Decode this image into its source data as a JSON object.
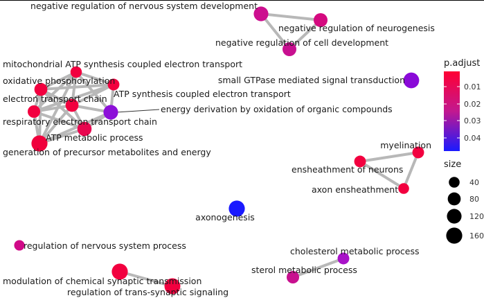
{
  "legend": {
    "color_title": "p.adjust",
    "color_ticks": [
      "0.01",
      "0.02",
      "0.03",
      "0.04"
    ],
    "color_high": "#ff0033",
    "color_low": "#1a1aff",
    "size_title": "size",
    "size_ticks": [
      "40",
      "80",
      "120",
      "160"
    ]
  },
  "nodes": [
    {
      "id": "neg-nervous-dev",
      "label": "negative regulation of nervous system development",
      "color": "#cc0f8f",
      "size": 120
    },
    {
      "id": "neg-neurogenesis",
      "label": "negative regulation of neurogenesis",
      "color": "#d40a7f",
      "size": 100
    },
    {
      "id": "neg-cell-dev",
      "label": "negative regulation of cell development",
      "color": "#c81090",
      "size": 100
    },
    {
      "id": "mito-atp",
      "label": "mitochondrial ATP synthesis coupled electron transport",
      "color": "#f2003f",
      "size": 50
    },
    {
      "id": "oxphos",
      "label": "oxidative phosphorylation",
      "color": "#f2003f",
      "size": 80
    },
    {
      "id": "atp-synthesis",
      "label": "ATP synthesis coupled electron transport",
      "color": "#f2003f",
      "size": 55
    },
    {
      "id": "etc",
      "label": "electron transport chain",
      "color": "#f2003f",
      "size": 80
    },
    {
      "id": "resp-etc",
      "label": "respiratory electron transport chain",
      "color": "#f2003f",
      "size": 70
    },
    {
      "id": "energy-deriv",
      "label": "energy derivation by oxidation of organic compounds",
      "color": "#8c10d8",
      "size": 120
    },
    {
      "id": "atp-metabolic",
      "label": "ATP metabolic process",
      "color": "#e8074f",
      "size": 110
    },
    {
      "id": "gen-precursor",
      "label": "generation of precursor metabolites and energy",
      "color": "#f0003c",
      "size": 160
    },
    {
      "id": "small-gtpase",
      "label": "small GTPase mediated signal transduction",
      "color": "#8a0ad8",
      "size": 150
    },
    {
      "id": "myelination",
      "label": "myelination",
      "color": "#f2003f",
      "size": 55
    },
    {
      "id": "ensheathment-neurons",
      "label": "ensheathment of neurons",
      "color": "#f2003f",
      "size": 55
    },
    {
      "id": "axon-ensheathment",
      "label": "axon ensheathment",
      "color": "#f2003f",
      "size": 40
    },
    {
      "id": "axonogenesis",
      "label": "axonogenesis",
      "color": "#1a1aff",
      "size": 160
    },
    {
      "id": "reg-nervous-process",
      "label": "regulation of nervous system process",
      "color": "#d00a88",
      "size": 35
    },
    {
      "id": "cholesterol-metabolic",
      "label": "cholesterol metabolic process",
      "color": "#a812c8",
      "size": 55
    },
    {
      "id": "sterol-metabolic",
      "label": "sterol metabolic process",
      "color": "#c8108f",
      "size": 70
    },
    {
      "id": "mod-chem-syn",
      "label": "modulation of chemical synaptic transmission",
      "color": "#f2003f",
      "size": 160
    },
    {
      "id": "reg-trans-syn",
      "label": "regulation of trans-synaptic signaling",
      "color": "#f2003f",
      "size": 155
    }
  ],
  "edges": [
    [
      "neg-nervous-dev",
      "neg-neurogenesis"
    ],
    [
      "neg-nervous-dev",
      "neg-cell-dev"
    ],
    [
      "neg-neurogenesis",
      "neg-cell-dev"
    ],
    [
      "mito-atp",
      "oxphos"
    ],
    [
      "mito-atp",
      "atp-synthesis"
    ],
    [
      "mito-atp",
      "etc"
    ],
    [
      "mito-atp",
      "resp-etc"
    ],
    [
      "mito-atp",
      "energy-deriv"
    ],
    [
      "mito-atp",
      "gen-precursor"
    ],
    [
      "oxphos",
      "atp-synthesis"
    ],
    [
      "oxphos",
      "etc"
    ],
    [
      "oxphos",
      "resp-etc"
    ],
    [
      "oxphos",
      "atp-metabolic"
    ],
    [
      "oxphos",
      "gen-precursor"
    ],
    [
      "atp-synthesis",
      "etc"
    ],
    [
      "atp-synthesis",
      "resp-etc"
    ],
    [
      "atp-synthesis",
      "energy-deriv"
    ],
    [
      "etc",
      "resp-etc"
    ],
    [
      "etc",
      "energy-deriv"
    ],
    [
      "etc",
      "gen-precursor"
    ],
    [
      "etc",
      "atp-metabolic"
    ],
    [
      "resp-etc",
      "gen-precursor"
    ],
    [
      "resp-etc",
      "atp-metabolic"
    ],
    [
      "energy-deriv",
      "gen-precursor"
    ],
    [
      "energy-deriv",
      "atp-metabolic"
    ],
    [
      "atp-metabolic",
      "gen-precursor"
    ],
    [
      "myelination",
      "ensheathment-neurons"
    ],
    [
      "myelination",
      "axon-ensheathment"
    ],
    [
      "ensheathment-neurons",
      "axon-ensheathment"
    ],
    [
      "cholesterol-metabolic",
      "sterol-metabolic"
    ],
    [
      "mod-chem-syn",
      "reg-trans-syn"
    ]
  ]
}
